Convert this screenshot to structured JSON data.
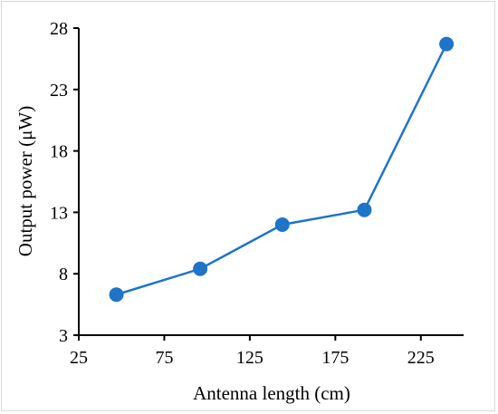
{
  "chart_data": {
    "type": "line",
    "xlabel": "Antenna length (cm)",
    "ylabel": "Output power (μW)",
    "xlim": [
      25,
      250
    ],
    "ylim": [
      3,
      28
    ],
    "xticks": [
      "25",
      "75",
      "125",
      "175",
      "225"
    ],
    "yticks": [
      "3",
      "8",
      "13",
      "18",
      "23",
      "28"
    ],
    "grid": false,
    "series": [
      {
        "x": [
          47,
          96,
          144,
          192,
          240
        ],
        "y": [
          6.3,
          8.4,
          12.0,
          13.2,
          26.7
        ]
      }
    ],
    "color": "#1f74c8"
  }
}
